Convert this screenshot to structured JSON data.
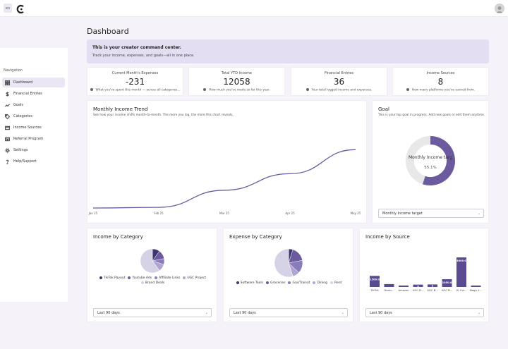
{
  "header": {
    "lang": "en"
  },
  "sidebar": {
    "title": "Navigation",
    "items": [
      {
        "label": "Dashboard",
        "icon": "grid-icon"
      },
      {
        "label": "Financial Entries",
        "icon": "dollar-icon"
      },
      {
        "label": "Goals",
        "icon": "trend-icon"
      },
      {
        "label": "Categories",
        "icon": "tag-icon"
      },
      {
        "label": "Income Sources",
        "icon": "card-icon"
      },
      {
        "label": "Referral Program",
        "icon": "referral-icon"
      },
      {
        "label": "Settings",
        "icon": "gear-icon"
      },
      {
        "label": "Help/Support",
        "icon": "help-icon"
      }
    ]
  },
  "main": {
    "title": "Dashboard",
    "banner": {
      "heading": "This is your creator command center.",
      "sub": "Track your income, expenses, and goals—all in one place."
    }
  },
  "stats": [
    {
      "label": "Current Month's Expenses",
      "value": "-231",
      "desc": "What you've spent this month — across all categories..."
    },
    {
      "label": "Total YTD Income",
      "value": "12058",
      "desc": "How much you've made so far this year."
    },
    {
      "label": "Financial Entries",
      "value": "36",
      "desc": "Your total logged income and expenses."
    },
    {
      "label": "Income Sources",
      "value": "8",
      "desc": "How many platforms you've earned from."
    }
  ],
  "trend": {
    "title": "Monthly Income Trend",
    "sub": "See how your income shifts month-to-month. The more you log, the more this chart reveals."
  },
  "goal": {
    "title": "Goal",
    "sub": "This is your top goal in progress. Add new goals or edit them anytime.",
    "center_label": "Monthly Income targ",
    "percent_text": "55.1%",
    "select": "Monthly Income target"
  },
  "income_category": {
    "title": "Income by Category",
    "select": "Last 90 days"
  },
  "expense_category": {
    "title": "Expense by Category",
    "select": "Last 90 days"
  },
  "income_source": {
    "title": "Income by Source",
    "select": "Last 90 days"
  },
  "colors": {
    "accent": "#6b5b9e",
    "banner": "#e4def3",
    "ring_bg": "#e8e8e8"
  },
  "chart_data": [
    {
      "type": "line",
      "x": [
        "Jan 25",
        "Feb 25",
        "Mar 25",
        "Apr 25",
        "May 25"
      ],
      "values": [
        0,
        50,
        1400,
        2700,
        4600
      ],
      "ylim": [
        0,
        5000
      ],
      "grid": false
    },
    {
      "type": "pie",
      "donut": true,
      "labels": [
        "Monthly Income target"
      ],
      "values": [
        55.1
      ],
      "percent": 0.551
    },
    {
      "type": "pie",
      "labels": [
        "TikTok Payout",
        "Youtube Ads",
        "Affiliate Links",
        "UGC Project",
        "Brand Deals"
      ],
      "values": [
        10,
        12,
        8,
        10,
        60
      ],
      "colors": [
        "#3f3570",
        "#6b5b9e",
        "#8a7cb8",
        "#b0a5d2",
        "#d6d2e6"
      ]
    },
    {
      "type": "pie",
      "labels": [
        "Software Tools",
        "Groceries",
        "Gas/Transit",
        "Dining",
        "Rent"
      ],
      "values": [
        5,
        17,
        15,
        8,
        55
      ],
      "colors": [
        "#3f3570",
        "#6b5b9e",
        "#8a7cb8",
        "#b0a5d2",
        "#d6d2e6"
      ]
    },
    {
      "type": "bar",
      "categories": [
        "TikTok",
        "Youtu...",
        "Amazon",
        "UGC B...",
        "UGC B...",
        "UGC B...",
        "IG Col...",
        "Magic L..."
      ],
      "values": [
        1500,
        390,
        150,
        320,
        340,
        1050,
        4000,
        180
      ],
      "labels": [
        "$1500.00",
        "",
        "",
        "$",
        "$",
        "$1050.00",
        "$4000.00",
        ""
      ],
      "ylim": [
        0,
        4200
      ]
    }
  ]
}
